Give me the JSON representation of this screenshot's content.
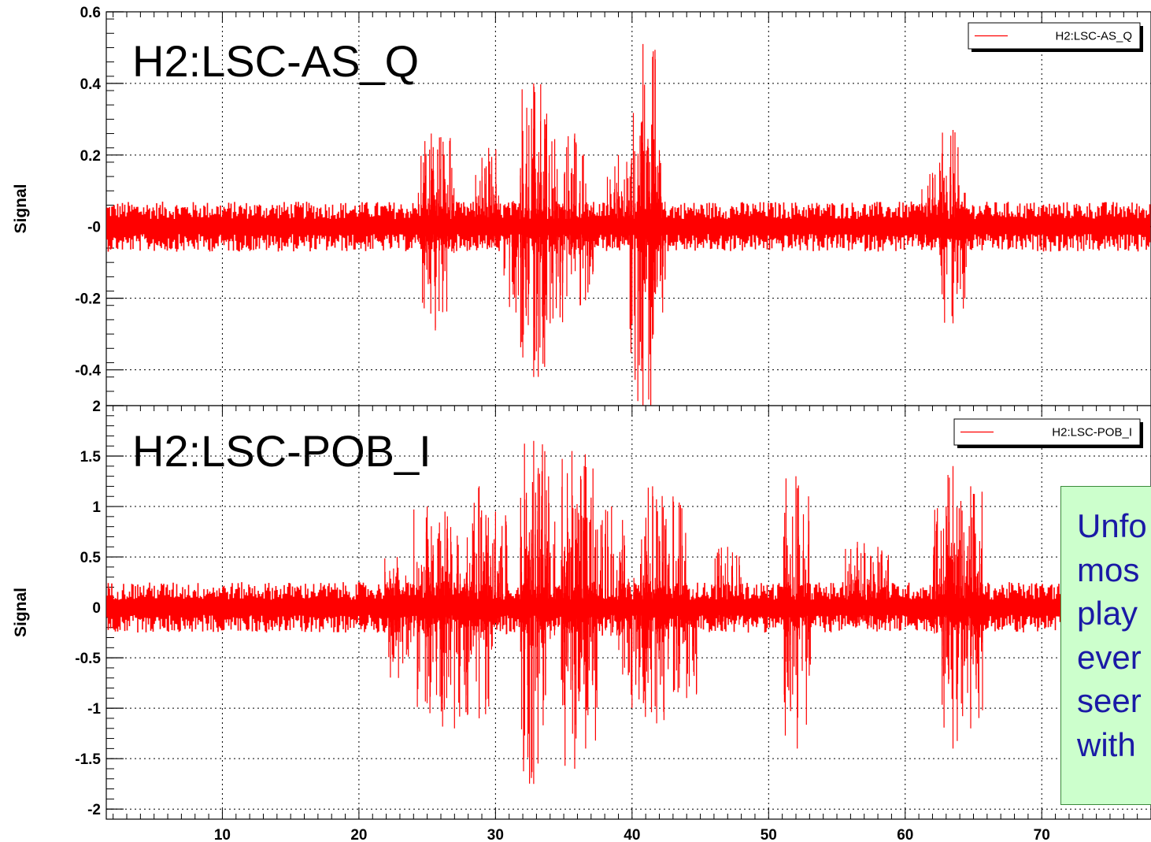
{
  "chart_data": [
    {
      "type": "line",
      "title": "H2:LSC-AS_Q",
      "ylabel": "Signal",
      "xlabel": "",
      "xlim": [
        1.5,
        78
      ],
      "ylim": [
        -0.5,
        0.6
      ],
      "grid": true,
      "legend_position": "top-right",
      "x_ticks": [
        10,
        20,
        30,
        40,
        50,
        60,
        70
      ],
      "y_ticks": [
        0.6,
        0.4,
        0.2,
        0,
        -0.2,
        -0.4
      ],
      "y_tick_labels": [
        "0.6",
        "0.4",
        "0.2",
        "-0",
        "-0.2",
        "-0.4"
      ],
      "series": [
        {
          "name": "H2:LSC-AS_Q",
          "color": "#ff0000",
          "baseline": 0,
          "noise_amplitude": 0.07,
          "bursts": [
            {
              "x": 25.3,
              "y": 0.26
            },
            {
              "x": 25.6,
              "y": -0.29
            },
            {
              "x": 26.0,
              "y": 0.25
            },
            {
              "x": 29.5,
              "y": 0.22
            },
            {
              "x": 31.5,
              "y": -0.24
            },
            {
              "x": 32.8,
              "y": 0.4
            },
            {
              "x": 32.8,
              "y": -0.42
            },
            {
              "x": 33.6,
              "y": 0.3
            },
            {
              "x": 34.0,
              "y": -0.27
            },
            {
              "x": 35.8,
              "y": 0.26
            },
            {
              "x": 36.2,
              "y": -0.22
            },
            {
              "x": 39.0,
              "y": 0.2
            },
            {
              "x": 40.8,
              "y": 0.51
            },
            {
              "x": 40.8,
              "y": -0.51
            },
            {
              "x": 41.2,
              "y": 0.22
            },
            {
              "x": 41.5,
              "y": -0.24
            },
            {
              "x": 63.5,
              "y": 0.27
            },
            {
              "x": 63.5,
              "y": -0.27
            },
            {
              "x": 62.0,
              "y": 0.15
            }
          ]
        }
      ]
    },
    {
      "type": "line",
      "title": "H2:LSC-POB_I",
      "ylabel": "Signal",
      "xlabel": "",
      "xlim": [
        1.5,
        78
      ],
      "ylim": [
        -2.1,
        2
      ],
      "grid": true,
      "legend_position": "top-right",
      "x_ticks": [
        10,
        20,
        30,
        40,
        50,
        60,
        70
      ],
      "y_ticks": [
        2,
        1.5,
        1,
        0.5,
        0,
        -0.5,
        -1,
        -1.5,
        -2
      ],
      "y_tick_labels": [
        "2",
        "1.5",
        "1",
        "0.5",
        "0",
        "-0.5",
        "-1",
        "-1.5",
        "-2"
      ],
      "series": [
        {
          "name": "H2:LSC-POB_I",
          "color": "#ff0000",
          "baseline": 0,
          "noise_amplitude": 0.25,
          "bursts": [
            {
              "x": 25.0,
              "y": 1.0
            },
            {
              "x": 25.2,
              "y": -1.05
            },
            {
              "x": 26.3,
              "y": 0.95
            },
            {
              "x": 27.0,
              "y": -1.2
            },
            {
              "x": 28.8,
              "y": 1.2
            },
            {
              "x": 28.8,
              "y": -1.1
            },
            {
              "x": 30.0,
              "y": 0.95
            },
            {
              "x": 32.8,
              "y": 1.65
            },
            {
              "x": 32.8,
              "y": -1.75
            },
            {
              "x": 33.4,
              "y": 1.35
            },
            {
              "x": 35.6,
              "y": 1.55
            },
            {
              "x": 35.8,
              "y": -1.6
            },
            {
              "x": 36.5,
              "y": 1.4
            },
            {
              "x": 36.6,
              "y": -1.4
            },
            {
              "x": 38.5,
              "y": 1.0
            },
            {
              "x": 40.0,
              "y": -1.0
            },
            {
              "x": 41.5,
              "y": 1.2
            },
            {
              "x": 41.8,
              "y": -1.15
            },
            {
              "x": 43.0,
              "y": 1.1
            },
            {
              "x": 44.0,
              "y": -0.9
            },
            {
              "x": 47.0,
              "y": 0.6
            },
            {
              "x": 52.0,
              "y": 1.3
            },
            {
              "x": 52.1,
              "y": -1.4
            },
            {
              "x": 56.5,
              "y": 0.65
            },
            {
              "x": 58.0,
              "y": 0.6
            },
            {
              "x": 63.0,
              "y": 1.0
            },
            {
              "x": 63.5,
              "y": 1.4
            },
            {
              "x": 63.5,
              "y": -1.4
            },
            {
              "x": 64.8,
              "y": 1.2
            },
            {
              "x": 64.8,
              "y": -1.2
            },
            {
              "x": 22.8,
              "y": 0.5
            },
            {
              "x": 22.9,
              "y": -0.7
            }
          ]
        }
      ]
    }
  ],
  "note": {
    "lines": [
      "Unfo",
      "mos",
      "play",
      "ever",
      "seer",
      "with"
    ]
  }
}
